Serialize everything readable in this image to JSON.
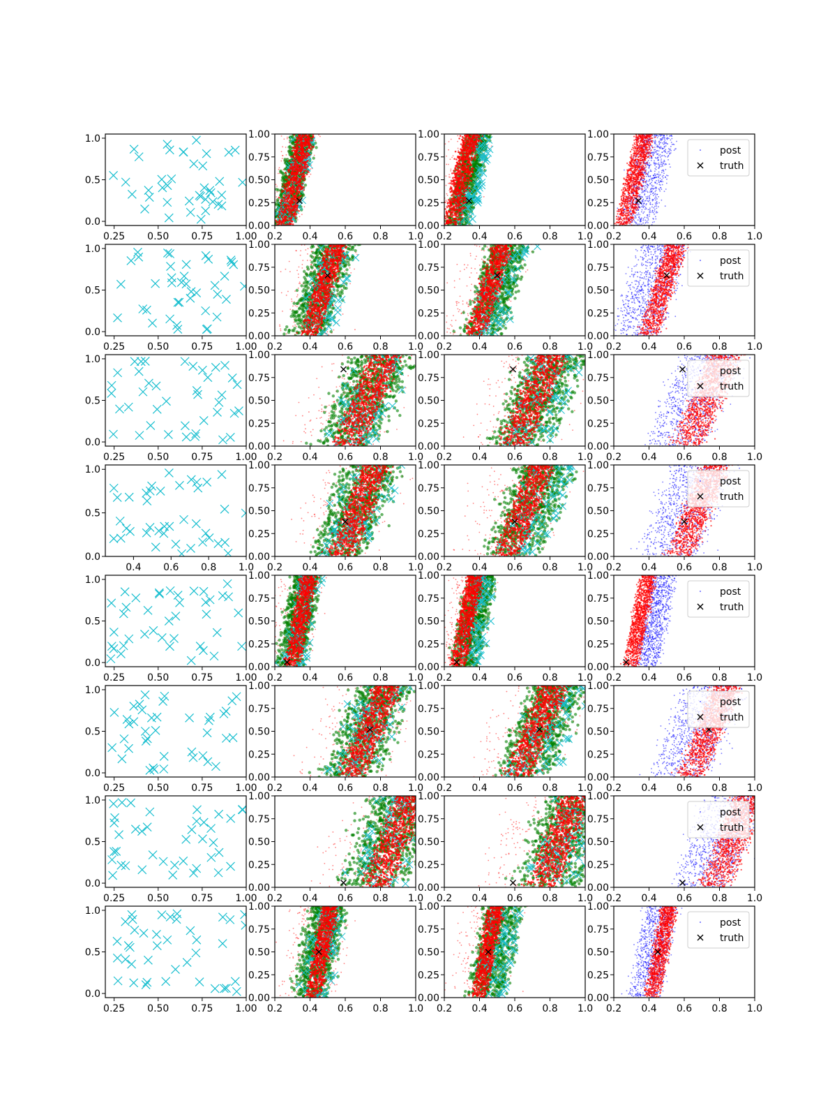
{
  "chart_data": {
    "type": "scatter",
    "title": "",
    "grid_rows": 8,
    "grid_cols": 4,
    "colors": {
      "cyan": "#17becf",
      "green": "#008000",
      "red": "#ff0000",
      "blue": "#0000ff",
      "truth": "#000000"
    },
    "legend": {
      "entries": [
        "post",
        "truth"
      ],
      "placement": "upper right"
    },
    "rows": [
      {
        "truth": [
          0.34,
          0.27
        ],
        "col0_xlim": [
          0.2,
          1.0
        ],
        "col0_ylim": [
          -0.05,
          1.05
        ],
        "col0_xticks": [
          "0.25",
          "0.50",
          "0.75",
          "1.00"
        ],
        "col0_xtick_values": [
          0.25,
          0.5,
          0.75,
          1.0
        ],
        "col0_yticks": [
          "0.0",
          "0.5",
          "1.0"
        ],
        "col0_ytick_values": [
          0.0,
          0.5,
          1.0
        ],
        "band": {
          "x_at_y0": 0.26,
          "x_at_y1": 0.38,
          "width_red": 0.09,
          "width_green": 0.12,
          "width_blue": 0.18,
          "blue_shift": 0.08
        }
      },
      {
        "truth": [
          0.5,
          0.66
        ],
        "col0_xlim": [
          0.2,
          1.0
        ],
        "col0_ylim": [
          -0.05,
          1.05
        ],
        "col0_xticks": [
          "0.25",
          "0.50",
          "0.75",
          "1.00"
        ],
        "col0_xtick_values": [
          0.25,
          0.5,
          0.75,
          1.0
        ],
        "col0_yticks": [
          "0.0",
          "0.5",
          "1.0"
        ],
        "col0_ytick_values": [
          0.0,
          0.5,
          1.0
        ],
        "band": {
          "x_at_y0": 0.4,
          "x_at_y1": 0.56,
          "width_red": 0.1,
          "width_green": 0.2,
          "width_blue": 0.25,
          "blue_shift": -0.06
        }
      },
      {
        "truth": [
          0.59,
          0.84
        ],
        "col0_xlim": [
          0.2,
          1.0
        ],
        "col0_ylim": [
          -0.05,
          1.05
        ],
        "col0_xticks": [
          "0.25",
          "0.50",
          "0.75",
          "1.00"
        ],
        "col0_xtick_values": [
          0.25,
          0.5,
          0.75,
          1.0
        ],
        "col0_yticks": [
          "0.0",
          "0.5",
          "1.0"
        ],
        "col0_ytick_values": [
          0.0,
          0.5,
          1.0
        ],
        "band": {
          "x_at_y0": 0.62,
          "x_at_y1": 0.84,
          "width_red": 0.16,
          "width_green": 0.3,
          "width_blue": 0.3,
          "blue_shift": -0.06
        }
      },
      {
        "truth": [
          0.6,
          0.38
        ],
        "col0_xlim": [
          0.25,
          1.0
        ],
        "col0_ylim": [
          0.0,
          1.05
        ],
        "col0_xticks": [
          "0.4",
          "0.6",
          "0.8",
          "1.0"
        ],
        "col0_xtick_values": [
          0.4,
          0.6,
          0.8,
          1.0
        ],
        "col0_yticks": [
          "0.0",
          "0.5",
          "1.0"
        ],
        "col0_ytick_values": [
          0.0,
          0.5,
          1.0
        ],
        "band": {
          "x_at_y0": 0.58,
          "x_at_y1": 0.78,
          "width_red": 0.14,
          "width_green": 0.28,
          "width_blue": 0.3,
          "blue_shift": -0.06
        }
      },
      {
        "truth": [
          0.27,
          0.05
        ],
        "col0_xlim": [
          0.2,
          1.0
        ],
        "col0_ylim": [
          -0.05,
          1.05
        ],
        "col0_xticks": [
          "0.25",
          "0.50",
          "0.75",
          "1.00"
        ],
        "col0_xtick_values": [
          0.25,
          0.5,
          0.75,
          1.0
        ],
        "col0_yticks": [
          "0.0",
          "0.5",
          "1.0"
        ],
        "col0_ytick_values": [
          0.0,
          0.5,
          1.0
        ],
        "band": {
          "x_at_y0": 0.3,
          "x_at_y1": 0.4,
          "width_red": 0.08,
          "width_green": 0.14,
          "width_blue": 0.12,
          "blue_shift": 0.09
        }
      },
      {
        "truth": [
          0.74,
          0.52
        ],
        "col0_xlim": [
          0.2,
          1.0
        ],
        "col0_ylim": [
          -0.05,
          1.05
        ],
        "col0_xticks": [
          "0.25",
          "0.50",
          "0.75",
          "1.00"
        ],
        "col0_xtick_values": [
          0.25,
          0.5,
          0.75,
          1.0
        ],
        "col0_yticks": [
          "0.0",
          "0.5",
          "1.0"
        ],
        "col0_ytick_values": [
          0.0,
          0.5,
          1.0
        ],
        "band": {
          "x_at_y0": 0.64,
          "x_at_y1": 0.85,
          "width_red": 0.14,
          "width_green": 0.28,
          "width_blue": 0.3,
          "blue_shift": -0.06
        }
      },
      {
        "truth": [
          0.59,
          0.05
        ],
        "col0_xlim": [
          0.2,
          1.0
        ],
        "col0_ylim": [
          -0.05,
          1.05
        ],
        "col0_xticks": [
          "0.25",
          "0.50",
          "0.75",
          "1.00"
        ],
        "col0_xtick_values": [
          0.25,
          0.5,
          0.75,
          1.0
        ],
        "col0_yticks": [
          "0.0",
          "0.5",
          "1.0"
        ],
        "col0_ytick_values": [
          0.0,
          0.5,
          1.0
        ],
        "band": {
          "x_at_y0": 0.78,
          "x_at_y1": 0.98,
          "width_red": 0.16,
          "width_green": 0.34,
          "width_blue": 0.3,
          "blue_shift": -0.07
        }
      },
      {
        "truth": [
          0.45,
          0.5
        ],
        "col0_xlim": [
          0.2,
          1.0
        ],
        "col0_ylim": [
          -0.05,
          1.05
        ],
        "col0_xticks": [
          "0.25",
          "0.50",
          "0.75",
          "1.00"
        ],
        "col0_xtick_values": [
          0.25,
          0.5,
          0.75,
          1.0
        ],
        "col0_yticks": [
          "0.0",
          "0.5",
          "1.0"
        ],
        "col0_ytick_values": [
          0.0,
          0.5,
          1.0
        ],
        "band": {
          "x_at_y0": 0.42,
          "x_at_y1": 0.52,
          "width_red": 0.08,
          "width_green": 0.18,
          "width_blue": 0.16,
          "blue_shift": -0.04
        }
      }
    ],
    "posterior_axes": {
      "xlim": [
        0.2,
        1.0
      ],
      "ylim": [
        0.0,
        1.0
      ],
      "xticks": [
        "0.2",
        "0.4",
        "0.6",
        "0.8",
        "1.0"
      ],
      "xtick_values": [
        0.2,
        0.4,
        0.6,
        0.8,
        1.0
      ],
      "yticks": [
        "0.00",
        "0.25",
        "0.50",
        "0.75",
        "1.00"
      ],
      "ytick_values": [
        0.0,
        0.25,
        0.5,
        0.75,
        1.0
      ]
    }
  }
}
